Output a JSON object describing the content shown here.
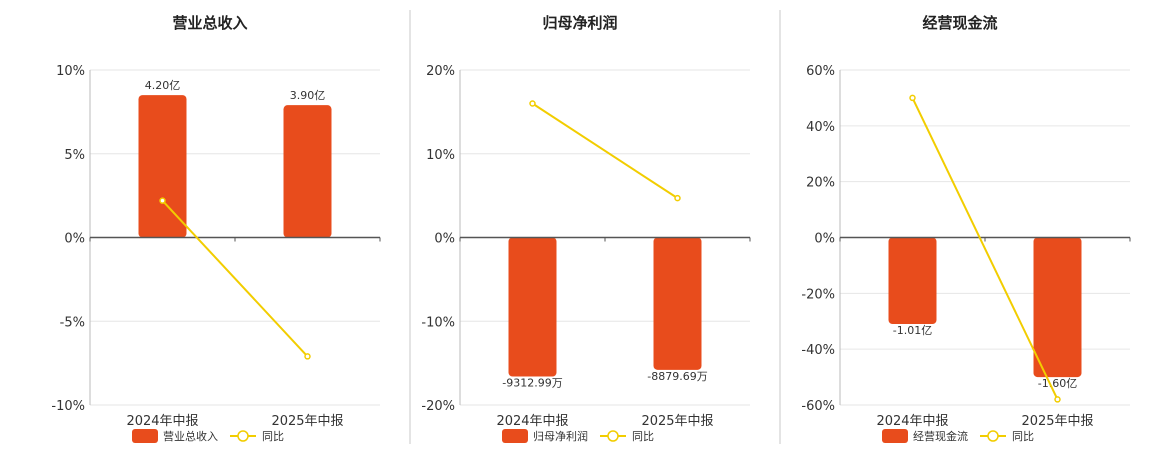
{
  "colors": {
    "bar": "#e84c1c",
    "line": "#f2cd00"
  },
  "chart_data": [
    {
      "type": "bar",
      "title": "营业总收入",
      "categories": [
        "2024年中报",
        "2025年中报"
      ],
      "bar_series": {
        "name": "营业总收入",
        "labels": [
          "4.20亿",
          "3.90亿"
        ],
        "values_pct": [
          8.5,
          7.9
        ]
      },
      "line_series": {
        "name": "同比",
        "values": [
          2.2,
          -7.1
        ]
      },
      "ylim": [
        -10,
        10
      ],
      "yticks": [
        10,
        5,
        0,
        -5,
        -10
      ],
      "ytick_labels": [
        "10%",
        "5%",
        "0%",
        "-5%",
        "-10%"
      ],
      "grid": true,
      "legend": "bottom"
    },
    {
      "type": "bar",
      "title": "归母净利润",
      "categories": [
        "2024年中报",
        "2025年中报"
      ],
      "bar_series": {
        "name": "归母净利润",
        "labels": [
          "-9312.99万",
          "-8879.69万"
        ],
        "values_pct": [
          -16.6,
          -15.8
        ]
      },
      "line_series": {
        "name": "同比",
        "values": [
          16.0,
          4.7
        ]
      },
      "ylim": [
        -20,
        20
      ],
      "yticks": [
        20,
        10,
        0,
        -10,
        -20
      ],
      "ytick_labels": [
        "20%",
        "10%",
        "0%",
        "-10%",
        "-20%"
      ],
      "grid": true,
      "legend": "bottom"
    },
    {
      "type": "bar",
      "title": "经营现金流",
      "categories": [
        "2024年中报",
        "2025年中报"
      ],
      "bar_series": {
        "name": "经营现金流",
        "labels": [
          "-1.01亿",
          "-1.60亿"
        ],
        "values_pct": [
          -31,
          -50
        ]
      },
      "line_series": {
        "name": "同比",
        "values": [
          50,
          -58
        ]
      },
      "ylim": [
        -60,
        60
      ],
      "yticks": [
        60,
        40,
        20,
        0,
        -20,
        -40,
        -60
      ],
      "ytick_labels": [
        "60%",
        "40%",
        "20%",
        "0%",
        "-20%",
        "-40%",
        "-60%"
      ],
      "grid": true,
      "legend": "bottom"
    }
  ]
}
